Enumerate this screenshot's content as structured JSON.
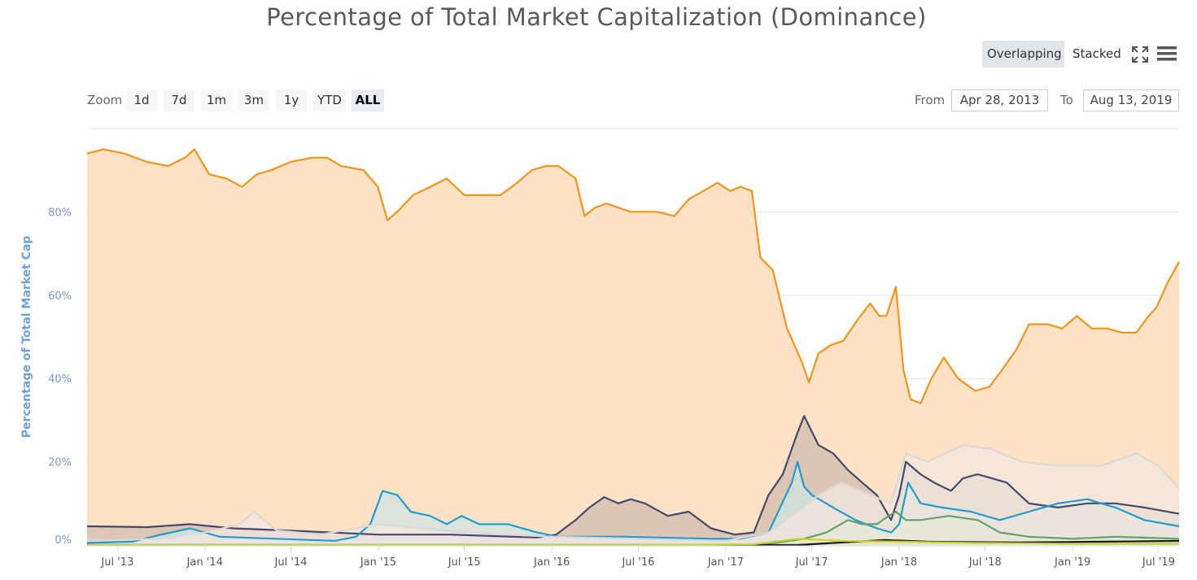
{
  "toolbar": {
    "overlapping_label": "Overlapping",
    "stacked_label": "Stacked",
    "fullscreen_icon": "fullscreen-icon",
    "menu_icon": "menu-icon"
  },
  "range_selector": {
    "zoom_label": "Zoom",
    "buttons": [
      "1d",
      "7d",
      "1m",
      "3m",
      "1y",
      "YTD",
      "ALL"
    ],
    "active": "ALL",
    "from_label": "From",
    "from_value": "Apr 28, 2013",
    "to_label": "To",
    "to_value": "Aug 13, 2019"
  },
  "chart_data": {
    "type": "area",
    "title": "Percentage of Total Market Capitalization (Dominance)",
    "ylabel": "Percentage of Total Market Cap",
    "xlabel": "",
    "ylim": [
      0,
      100
    ],
    "yticks": [
      0,
      20,
      40,
      60,
      80
    ],
    "ytick_labels": [
      "0%",
      "20%",
      "40%",
      "60%",
      "80%"
    ],
    "xlim": [
      "2013-04-28",
      "2019-08-13"
    ],
    "xticks": [
      "2013-07-01",
      "2014-01-01",
      "2014-07-01",
      "2015-01-01",
      "2015-07-01",
      "2016-01-01",
      "2016-07-01",
      "2017-01-01",
      "2017-07-01",
      "2018-01-01",
      "2018-07-01",
      "2019-01-01",
      "2019-07-01"
    ],
    "xtick_labels": [
      "Jul '13",
      "Jan '14",
      "Jul '14",
      "Jan '15",
      "Jul '15",
      "Jan '16",
      "Jul '16",
      "Jan '17",
      "Jul '17",
      "Jan '18",
      "Jul '18",
      "Jan '19",
      "Jul '19"
    ],
    "grid": true,
    "series": [
      {
        "color": "#f7931a",
        "fill": "#fde2c5",
        "x": [
          "2013-04-28",
          "2013-06-01",
          "2013-07-15",
          "2013-09-01",
          "2013-10-15",
          "2013-11-20",
          "2013-12-10",
          "2014-01-10",
          "2014-02-15",
          "2014-03-20",
          "2014-04-20",
          "2014-05-20",
          "2014-07-01",
          "2014-08-15",
          "2014-09-15",
          "2014-10-15",
          "2014-12-01",
          "2014-12-31",
          "2015-01-20",
          "2015-02-10",
          "2015-03-15",
          "2015-04-20",
          "2015-05-25",
          "2015-07-01",
          "2015-08-10",
          "2015-09-15",
          "2015-10-20",
          "2015-11-20",
          "2015-12-20",
          "2016-01-15",
          "2016-02-20",
          "2016-03-10",
          "2016-04-01",
          "2016-04-25",
          "2016-05-20",
          "2016-06-15",
          "2016-07-10",
          "2016-08-10",
          "2016-09-15",
          "2016-10-15",
          "2016-11-15",
          "2016-12-15",
          "2017-01-10",
          "2017-02-01",
          "2017-02-25",
          "2017-03-15",
          "2017-04-10",
          "2017-05-10",
          "2017-06-10",
          "2017-06-25",
          "2017-07-15",
          "2017-08-10",
          "2017-09-05",
          "2017-10-05",
          "2017-11-01",
          "2017-11-20",
          "2017-12-05",
          "2017-12-25",
          "2018-01-10",
          "2018-01-25",
          "2018-02-15",
          "2018-03-10",
          "2018-04-05",
          "2018-05-05",
          "2018-06-10",
          "2018-07-10",
          "2018-08-05",
          "2018-09-05",
          "2018-10-01",
          "2018-11-10",
          "2018-12-10",
          "2019-01-10",
          "2019-02-10",
          "2019-03-15",
          "2019-04-15",
          "2019-05-15",
          "2019-06-10",
          "2019-06-26",
          "2019-07-20",
          "2019-08-13"
        ],
        "y": [
          94,
          95,
          94,
          92,
          91,
          93,
          95,
          89,
          88,
          86,
          89,
          90,
          92,
          93,
          93,
          91,
          90,
          86,
          78,
          80,
          84,
          86,
          88,
          84,
          84,
          84,
          87,
          90,
          91,
          91,
          88,
          79,
          81,
          82,
          81,
          80,
          80,
          80,
          79,
          83,
          85,
          87,
          85,
          86,
          85,
          69,
          66,
          52,
          44,
          39,
          46,
          48,
          49,
          54,
          58,
          55,
          55,
          62,
          42,
          35,
          34,
          40,
          45,
          40,
          37,
          38,
          42,
          47,
          53,
          53,
          52,
          55,
          52,
          52,
          51,
          51,
          55,
          57,
          63,
          68
        ]
      },
      {
        "color": "#434a6e",
        "fill": "#d2bcac",
        "x": [
          "2013-04-28",
          "2013-09-01",
          "2013-12-01",
          "2014-03-01",
          "2014-08-01",
          "2015-01-01",
          "2015-06-01",
          "2015-12-01",
          "2016-01-10",
          "2016-02-20",
          "2016-03-20",
          "2016-04-20",
          "2016-05-20",
          "2016-06-15",
          "2016-07-15",
          "2016-09-01",
          "2016-10-15",
          "2016-12-01",
          "2017-01-20",
          "2017-03-01",
          "2017-04-01",
          "2017-05-01",
          "2017-06-01",
          "2017-06-15",
          "2017-07-15",
          "2017-08-15",
          "2017-09-15",
          "2017-10-15",
          "2017-11-15",
          "2017-12-15",
          "2018-01-01",
          "2018-01-15",
          "2018-02-15",
          "2018-03-15",
          "2018-04-20",
          "2018-05-15",
          "2018-06-15",
          "2018-08-15",
          "2018-10-01",
          "2018-12-01",
          "2019-02-01",
          "2019-04-01",
          "2019-06-01",
          "2019-08-13"
        ],
        "y": [
          4.5,
          4.3,
          5.0,
          4.0,
          3.3,
          2.5,
          2.5,
          1.8,
          2.5,
          6,
          9,
          11.5,
          10,
          11,
          10,
          7,
          8,
          4,
          2.5,
          3,
          12,
          17,
          27,
          31,
          24,
          22,
          18,
          15,
          12,
          6,
          12,
          20,
          17,
          15,
          13,
          16,
          17,
          15,
          10,
          9,
          10,
          10,
          9,
          7.5
        ]
      },
      {
        "color": "#1f9dd1",
        "fill": "#cfe3e0",
        "x": [
          "2013-04-28",
          "2013-08-01",
          "2013-10-01",
          "2013-12-01",
          "2014-02-01",
          "2014-06-01",
          "2014-10-01",
          "2014-11-15",
          "2014-12-15",
          "2015-01-10",
          "2015-02-10",
          "2015-03-10",
          "2015-04-20",
          "2015-05-25",
          "2015-06-25",
          "2015-08-01",
          "2015-10-01",
          "2015-12-01",
          "2016-01-15",
          "2016-06-01",
          "2016-12-01",
          "2017-02-01",
          "2017-04-01",
          "2017-05-20",
          "2017-06-01",
          "2017-06-15",
          "2017-07-01",
          "2017-08-15",
          "2017-10-01",
          "2017-11-15",
          "2017-12-15",
          "2018-01-01",
          "2018-01-20",
          "2018-02-15",
          "2018-04-01",
          "2018-06-01",
          "2018-08-01",
          "2018-10-01",
          "2018-12-01",
          "2019-02-01",
          "2019-04-01",
          "2019-06-01",
          "2019-08-13"
        ],
        "y": [
          0.5,
          0.8,
          2.5,
          4,
          2,
          1.5,
          1,
          2,
          5,
          13,
          12,
          8,
          7,
          5,
          7,
          5,
          5,
          3,
          2,
          2,
          1.5,
          1.5,
          3,
          15,
          20,
          14,
          12,
          9,
          6,
          4,
          3,
          5,
          15,
          10,
          9,
          8,
          6,
          8,
          10,
          11,
          9,
          6,
          4.5
        ]
      },
      {
        "color": "#5fa36a",
        "fill": "#cfe4cc",
        "x": [
          "2013-04-28",
          "2017-03-01",
          "2017-04-15",
          "2017-06-15",
          "2017-08-01",
          "2017-09-15",
          "2017-10-15",
          "2017-11-15",
          "2017-12-10",
          "2017-12-25",
          "2018-01-15",
          "2018-02-15",
          "2018-04-15",
          "2018-06-15",
          "2018-08-01",
          "2018-10-01",
          "2019-01-01",
          "2019-04-01",
          "2019-08-13"
        ],
        "y": [
          0,
          0,
          0.5,
          1.5,
          3,
          6,
          5,
          5,
          7,
          8,
          6,
          6,
          7,
          6,
          3,
          2,
          1.5,
          2,
          1.5
        ]
      },
      {
        "color": "#d9d9d9",
        "fill": "#f1e7de",
        "x": [
          "2013-04-28",
          "2013-10-01",
          "2014-01-01",
          "2014-03-15",
          "2014-04-15",
          "2014-06-01",
          "2014-09-01",
          "2015-01-01",
          "2015-04-01",
          "2015-07-01",
          "2016-01-01",
          "2016-07-01",
          "2017-01-01",
          "2017-04-01",
          "2017-06-01",
          "2017-07-15",
          "2017-09-01",
          "2017-11-01",
          "2017-12-15",
          "2018-01-15",
          "2018-03-01",
          "2018-05-15",
          "2018-07-15",
          "2018-09-15",
          "2018-12-01",
          "2019-03-01",
          "2019-05-15",
          "2019-07-01",
          "2019-08-13"
        ],
        "y": [
          1,
          1.5,
          3,
          5,
          8,
          3.5,
          2.5,
          5,
          4,
          3,
          2,
          1.5,
          1,
          3,
          8,
          12,
          15,
          12,
          10,
          22,
          20,
          24,
          23,
          20,
          19,
          19,
          22,
          19,
          13.5
        ]
      },
      {
        "color": "#1a1a1a",
        "fill": "#dfd4cb",
        "x": [
          "2013-04-28",
          "2017-06-01",
          "2017-09-01",
          "2017-12-01",
          "2018-03-01",
          "2018-09-01",
          "2019-03-01",
          "2019-08-13"
        ],
        "y": [
          0,
          0,
          0.6,
          1.2,
          0.8,
          0.6,
          0.8,
          1
        ]
      },
      {
        "color": "#c9d43a",
        "fill": "#eee8b6",
        "x": [
          "2013-04-28",
          "2016-06-01",
          "2017-03-01",
          "2017-06-01",
          "2017-09-01",
          "2018-01-01",
          "2018-06-01",
          "2019-01-01",
          "2019-08-13"
        ],
        "y": [
          0,
          0,
          0.2,
          1.5,
          1,
          0.8,
          0.5,
          0.3,
          0.3
        ]
      }
    ]
  }
}
